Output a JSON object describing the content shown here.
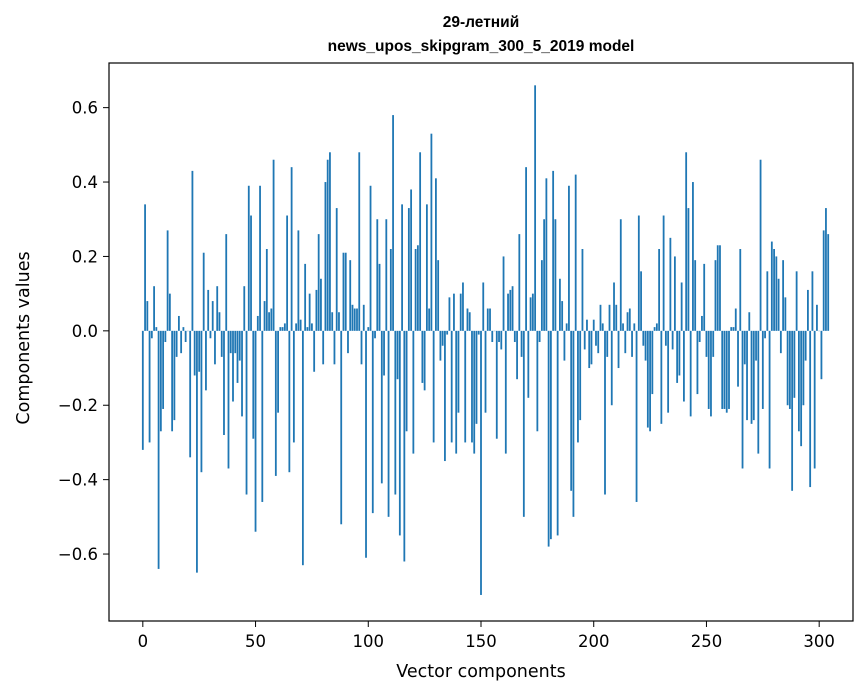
{
  "chart_data": {
    "type": "bar",
    "title_line1": "29-летний",
    "title_line2": "news_upos_skipgram_300_5_2019 model",
    "xlabel": "Vector components",
    "ylabel": "Components values",
    "xlim": [
      -15,
      315
    ],
    "ylim": [
      -0.78,
      0.72
    ],
    "xticks": [
      0,
      50,
      100,
      150,
      200,
      250,
      300
    ],
    "xtick_labels": [
      "0",
      "50",
      "100",
      "150",
      "200",
      "250",
      "300"
    ],
    "yticks": [
      -0.6,
      -0.4,
      -0.2,
      0.0,
      0.2,
      0.4,
      0.6
    ],
    "ytick_labels": [
      "−0.6",
      "−0.4",
      "−0.2",
      "0.0",
      "0.2",
      "0.4",
      "0.6"
    ],
    "bar_color": "#1f77b4",
    "values": [
      -0.32,
      0.34,
      0.08,
      -0.3,
      -0.02,
      0.12,
      0.01,
      -0.64,
      -0.27,
      -0.21,
      -0.03,
      0.27,
      0.1,
      -0.27,
      -0.24,
      -0.07,
      0.04,
      -0.06,
      0.01,
      -0.03,
      0.0,
      -0.34,
      0.43,
      -0.12,
      -0.65,
      -0.11,
      -0.38,
      0.21,
      -0.16,
      0.11,
      -0.02,
      0.08,
      -0.09,
      0.12,
      0.05,
      -0.07,
      -0.28,
      0.26,
      -0.37,
      -0.06,
      -0.19,
      -0.06,
      -0.14,
      -0.08,
      -0.23,
      0.12,
      -0.44,
      0.39,
      0.31,
      -0.29,
      -0.54,
      0.04,
      0.39,
      -0.46,
      0.08,
      0.22,
      0.05,
      0.06,
      0.46,
      -0.39,
      -0.22,
      0.01,
      0.01,
      0.02,
      0.31,
      -0.38,
      0.44,
      -0.3,
      0.02,
      0.27,
      0.03,
      -0.63,
      0.18,
      0.01,
      0.1,
      0.02,
      -0.11,
      0.11,
      0.26,
      0.14,
      -0.09,
      0.4,
      0.46,
      0.48,
      0.05,
      -0.09,
      0.33,
      0.05,
      -0.52,
      0.21,
      0.21,
      -0.06,
      0.19,
      0.07,
      0.06,
      0.06,
      0.48,
      -0.09,
      0.07,
      -0.61,
      0.01,
      0.39,
      -0.49,
      -0.02,
      0.3,
      0.18,
      -0.41,
      -0.12,
      0.3,
      -0.5,
      0.22,
      0.58,
      -0.44,
      -0.13,
      -0.55,
      0.34,
      -0.62,
      -0.27,
      0.33,
      0.38,
      -0.33,
      0.22,
      0.23,
      0.48,
      -0.14,
      -0.16,
      0.34,
      0.06,
      0.53,
      -0.3,
      0.41,
      0.19,
      -0.08,
      -0.04,
      -0.35,
      -0.01,
      0.09,
      -0.3,
      0.1,
      -0.33,
      -0.22,
      0.1,
      0.13,
      -0.3,
      0.06,
      0.05,
      -0.3,
      -0.33,
      -0.25,
      -0.01,
      -0.71,
      0.13,
      -0.22,
      0.06,
      0.06,
      -0.03,
      0.0,
      -0.29,
      -0.03,
      -0.05,
      0.2,
      -0.33,
      0.1,
      0.11,
      0.12,
      -0.03,
      -0.13,
      0.26,
      -0.07,
      -0.5,
      0.44,
      -0.18,
      0.09,
      0.1,
      0.66,
      -0.27,
      -0.03,
      0.19,
      0.3,
      0.41,
      -0.58,
      -0.56,
      0.43,
      0.3,
      -0.55,
      0.14,
      0.08,
      -0.08,
      0.02,
      0.39,
      -0.43,
      -0.5,
      0.42,
      -0.3,
      -0.24,
      0.22,
      -0.05,
      0.03,
      -0.1,
      -0.09,
      0.03,
      -0.04,
      -0.06,
      0.07,
      0.02,
      -0.44,
      -0.07,
      0.07,
      -0.2,
      0.13,
      0.07,
      -0.1,
      0.3,
      0.02,
      -0.06,
      0.05,
      0.06,
      -0.07,
      0.02,
      -0.46,
      0.31,
      0.16,
      -0.04,
      -0.08,
      -0.26,
      -0.27,
      -0.17,
      0.01,
      0.02,
      0.22,
      -0.25,
      0.31,
      -0.04,
      -0.22,
      0.25,
      -0.05,
      0.2,
      -0.14,
      -0.12,
      0.13,
      -0.19,
      0.48,
      0.33,
      -0.23,
      0.4,
      0.19,
      -0.17,
      -0.03,
      0.04,
      0.18,
      -0.07,
      -0.21,
      -0.23,
      -0.07,
      0.19,
      0.23,
      0.23,
      -0.21,
      -0.21,
      -0.22,
      -0.21,
      0.01,
      0.01,
      0.06,
      -0.15,
      0.22,
      -0.37,
      -0.09,
      -0.24,
      0.05,
      -0.25,
      -0.24,
      -0.08,
      -0.33,
      0.46,
      -0.21,
      -0.02,
      0.16,
      -0.37,
      0.24,
      0.22,
      0.2,
      0.14,
      -0.06,
      0.19,
      0.09,
      -0.2,
      -0.21,
      -0.43,
      -0.18,
      0.16,
      -0.27,
      -0.31,
      -0.2,
      -0.08,
      0.11,
      -0.42,
      0.16,
      -0.37,
      0.07,
      0.0,
      -0.13,
      0.27,
      0.33,
      0.26
    ]
  }
}
